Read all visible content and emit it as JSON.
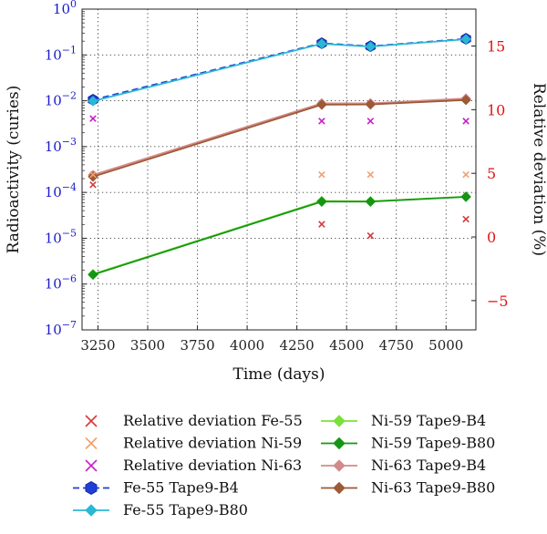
{
  "chart_data": {
    "type": "line",
    "xlabel": "Time (days)",
    "ylabel": "Radioactivity (curies)",
    "y2label": "Relative deviation (%)",
    "x_ticks": [
      3250,
      3500,
      3750,
      4000,
      4250,
      4500,
      4750,
      5000
    ],
    "xlim": [
      3170,
      5150
    ],
    "ylim": [
      1e-07,
      1
    ],
    "yscale": "log",
    "y_ticks": [
      "10^-7",
      "10^-6",
      "10^-5",
      "10^-4",
      "10^-3",
      "10^-2",
      "10^-1",
      "10^0"
    ],
    "y2lim": [
      -7.3,
      17.9
    ],
    "y2_ticks": [
      -5,
      0,
      5,
      10,
      15
    ],
    "grid": true,
    "left_axis_color": "#1a1acc",
    "right_axis_color": "#e01515",
    "x": [
      3225,
      4375,
      4620,
      5100
    ],
    "series": [
      {
        "name": "Fe-55 Tape9-B4",
        "axis": "left",
        "color": "#1f3fd6",
        "style": "dashed-hexagon",
        "values": [
          0.0105,
          0.18,
          0.155,
          0.225
        ]
      },
      {
        "name": "Fe-55 Tape9-B80",
        "axis": "left",
        "color": "#2ab8d4",
        "style": "line-diamond",
        "values": [
          0.0098,
          0.175,
          0.152,
          0.22
        ]
      },
      {
        "name": "Ni-59 Tape9-B4",
        "axis": "left",
        "color": "#7be03a",
        "style": "line-diamond",
        "values": [
          1.65e-06,
          6.5e-05,
          6.4e-05,
          8.1e-05
        ]
      },
      {
        "name": "Ni-59 Tape9-B80",
        "axis": "left",
        "color": "#149614",
        "style": "line-diamond",
        "values": [
          1.6e-06,
          6.3e-05,
          6.3e-05,
          8e-05
        ]
      },
      {
        "name": "Ni-63 Tape9-B4",
        "axis": "left",
        "color": "#d48a8a",
        "style": "line-diamond",
        "values": [
          0.00024,
          0.0088,
          0.0088,
          0.0112
        ]
      },
      {
        "name": "Ni-63 Tape9-B80",
        "axis": "left",
        "color": "#9c5a35",
        "style": "line-diamond",
        "values": [
          0.00022,
          0.0082,
          0.0083,
          0.0104
        ]
      },
      {
        "name": "Relative deviation Fe-55",
        "axis": "right",
        "color": "#d43a3a",
        "style": "x-marker",
        "values": [
          4.1,
          1.0,
          0.1,
          1.4
        ]
      },
      {
        "name": "Relative deviation Ni-59",
        "axis": "right",
        "color": "#f0a070",
        "style": "x-marker",
        "values": [
          4.9,
          4.9,
          4.9,
          4.9
        ]
      },
      {
        "name": "Relative deviation Ni-63",
        "axis": "right",
        "color": "#c81ec8",
        "style": "x-marker",
        "values": [
          9.3,
          9.1,
          9.1,
          9.1
        ]
      }
    ],
    "legend": {
      "placement": "bottom",
      "left_column": [
        "Relative deviation Fe-55",
        "Relative deviation Ni-59",
        "Relative deviation Ni-63",
        "Fe-55 Tape9-B4",
        "Fe-55 Tape9-B80"
      ],
      "right_column": [
        "Ni-59 Tape9-B4",
        "Ni-59 Tape9-B80",
        "Ni-63 Tape9-B4",
        "Ni-63 Tape9-B80"
      ]
    }
  }
}
